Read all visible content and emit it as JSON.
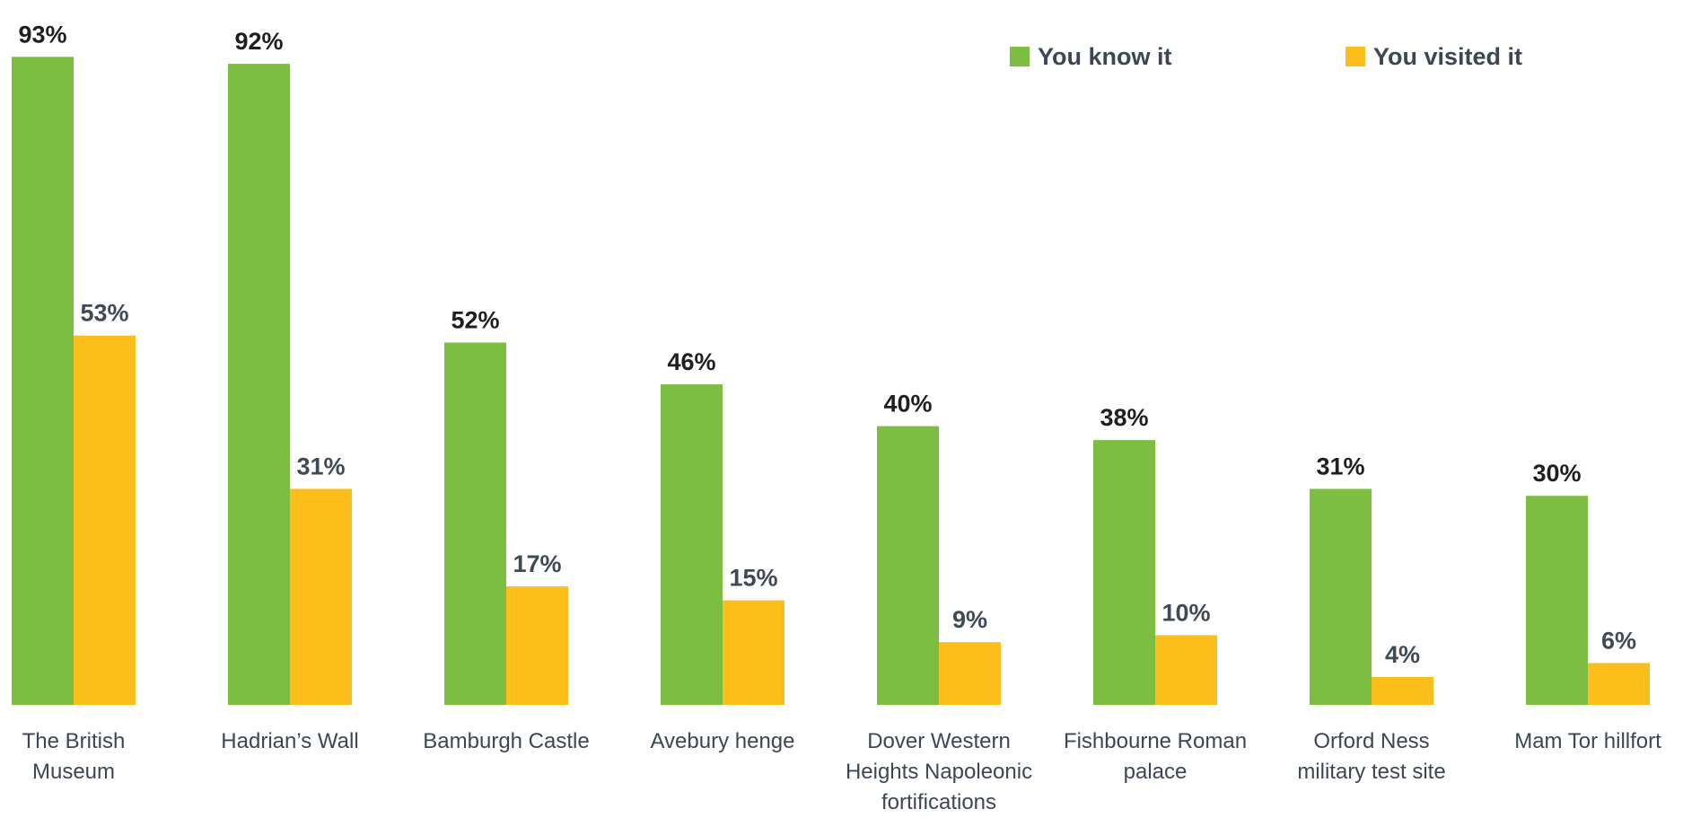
{
  "chart_data": {
    "type": "bar",
    "title": "",
    "xlabel": "",
    "ylabel": "",
    "ylim": [
      0,
      100
    ],
    "grid": false,
    "legend_position": "top-right",
    "categories": [
      [
        "The British",
        "Museum"
      ],
      [
        "Hadrian’s Wall"
      ],
      [
        "Bamburgh Castle"
      ],
      [
        "Avebury henge"
      ],
      [
        "Dover Western",
        "Heights Napoleonic",
        "fortifications"
      ],
      [
        "Fishbourne Roman",
        "palace"
      ],
      [
        "Orford Ness",
        "military test site"
      ],
      [
        "Mam Tor hillfort"
      ]
    ],
    "series": [
      {
        "name": "You know it",
        "color": "#7cbd42",
        "values": [
          93,
          92,
          52,
          46,
          40,
          38,
          31,
          30
        ],
        "labels": [
          "93%",
          "92%",
          "52%",
          "46%",
          "40%",
          "38%",
          "31%",
          "30%"
        ]
      },
      {
        "name": "You visited it",
        "color": "#fbbe1a",
        "values": [
          53,
          31,
          17,
          15,
          9,
          10,
          4,
          6
        ],
        "labels": [
          "53%",
          "31%",
          "17%",
          "15%",
          "9%",
          "10%",
          "4%",
          "6%"
        ]
      }
    ]
  }
}
